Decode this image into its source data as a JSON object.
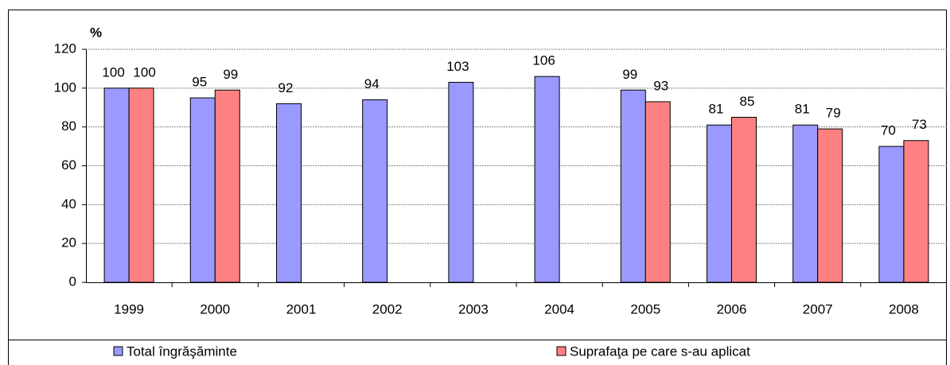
{
  "chart_data": {
    "type": "bar",
    "y_label": "%",
    "categories": [
      "1999",
      "2000",
      "2001",
      "2002",
      "2003",
      "2004",
      "2005",
      "2006",
      "2007",
      "2008"
    ],
    "series": [
      {
        "name": "Total îngrăşăminte",
        "color": "#9999ff",
        "values": [
          100,
          95,
          92,
          94,
          103,
          106,
          99,
          81,
          81,
          70
        ]
      },
      {
        "name": "Suprafaţa pe care s-au aplicat",
        "color": "#ff8080",
        "values": [
          100,
          99,
          null,
          null,
          null,
          null,
          93,
          85,
          79,
          73
        ]
      }
    ],
    "ylim": [
      0,
      120
    ],
    "yticks": [
      0,
      20,
      40,
      60,
      80,
      100,
      120
    ],
    "grid": true,
    "legend": "bottom"
  }
}
